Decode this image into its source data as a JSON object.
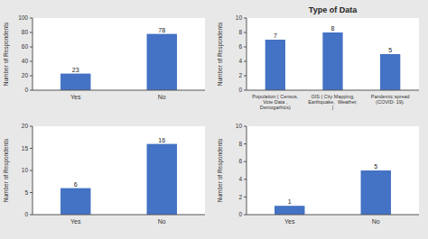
{
  "chart_data": [
    {
      "type": "bar",
      "categories": [
        "Yes",
        "No"
      ],
      "values": [
        23,
        78
      ],
      "color": "#4472C4",
      "ylim": [
        0,
        100
      ],
      "yticks": [
        0,
        20,
        40,
        60,
        80,
        100
      ],
      "y_label": "Number of Respondents",
      "data_labels": true,
      "grid": false
    },
    {
      "type": "bar",
      "title": "Type of Data",
      "categories": [
        "Population ( Census,\nVote Data ,\nDemogarhics)",
        "GIS ( City Mapping,\nEarthquake,  Weather,\n)",
        "Pandemic spread\n(COVID- 19)."
      ],
      "values": [
        7,
        8,
        5
      ],
      "color": "#4472C4",
      "ylim": [
        0,
        10
      ],
      "yticks": [
        0,
        2,
        4,
        6,
        8,
        10
      ],
      "y_label": "Number of Respondents",
      "data_labels": true,
      "grid": false
    },
    {
      "type": "bar",
      "categories": [
        "Yes",
        "No"
      ],
      "values": [
        6,
        16
      ],
      "color": "#4472C4",
      "ylim": [
        0,
        20
      ],
      "yticks": [
        0,
        5,
        10,
        15,
        20
      ],
      "y_label": "Number of Respondents",
      "data_labels": true,
      "grid": false
    },
    {
      "type": "bar",
      "categories": [
        "Yes",
        "No"
      ],
      "values": [
        1,
        5
      ],
      "color": "#4472C4",
      "ylim": [
        0,
        10
      ],
      "yticks": [
        0,
        2,
        4,
        6,
        8,
        10
      ],
      "y_label": "Number of Respondents",
      "data_labels": true,
      "grid": false
    }
  ]
}
